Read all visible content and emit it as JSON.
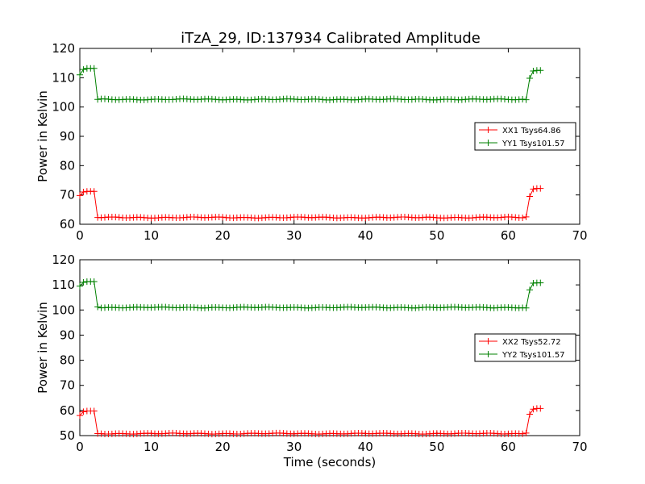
{
  "title": "iTzA_29, ID:137934 Calibrated Amplitude",
  "chart_data": [
    {
      "type": "line",
      "xlabel": "",
      "ylabel": "Power in Kelvin",
      "xlim": [
        0,
        70
      ],
      "ylim": [
        60,
        120
      ],
      "xticks": [
        "0",
        "10",
        "20",
        "30",
        "40",
        "50",
        "60",
        "70"
      ],
      "yticks": [
        "60",
        "70",
        "80",
        "90",
        "100",
        "110",
        "120"
      ],
      "grid": false,
      "legend_position": "center-right",
      "x": [
        0,
        0.5,
        1,
        1.5,
        2,
        2.5,
        62.5,
        63,
        63.5,
        64,
        64.5
      ],
      "series": [
        {
          "name": "XX1 Tsys64.86",
          "color": "#ff0000",
          "values": [
            69.8,
            71.0,
            71.2,
            71.2,
            71.2,
            62.3,
            62.5,
            69.5,
            72.0,
            72.2,
            72.2
          ],
          "baseline": 62.3
        },
        {
          "name": "YY1 Tsys101.57",
          "color": "#008000",
          "values": [
            111.0,
            112.8,
            113.2,
            113.2,
            113.2,
            102.6,
            102.5,
            109.8,
            112.3,
            112.5,
            112.5
          ],
          "baseline": 102.6
        }
      ]
    },
    {
      "type": "line",
      "xlabel": "Time (seconds)",
      "ylabel": "Power in Kelvin",
      "xlim": [
        0,
        70
      ],
      "ylim": [
        50,
        120
      ],
      "xticks": [
        "0",
        "10",
        "20",
        "30",
        "40",
        "50",
        "60",
        "70"
      ],
      "yticks": [
        "50",
        "60",
        "70",
        "80",
        "90",
        "100",
        "110",
        "120"
      ],
      "grid": false,
      "legend_position": "center-right",
      "x": [
        0,
        0.5,
        1,
        1.5,
        2,
        2.5,
        62.5,
        63,
        63.5,
        64,
        64.5
      ],
      "series": [
        {
          "name": "XX2 Tsys52.72",
          "color": "#ff0000",
          "values": [
            58.0,
            59.5,
            59.8,
            59.8,
            59.8,
            50.8,
            51.0,
            58.5,
            60.5,
            60.8,
            60.8
          ],
          "baseline": 50.8
        },
        {
          "name": "YY2 Tsys101.57",
          "color": "#008000",
          "values": [
            109.5,
            111.0,
            111.3,
            111.3,
            111.3,
            101.2,
            100.8,
            108.0,
            110.7,
            110.8,
            110.8
          ],
          "baseline": 101.0
        }
      ]
    }
  ]
}
